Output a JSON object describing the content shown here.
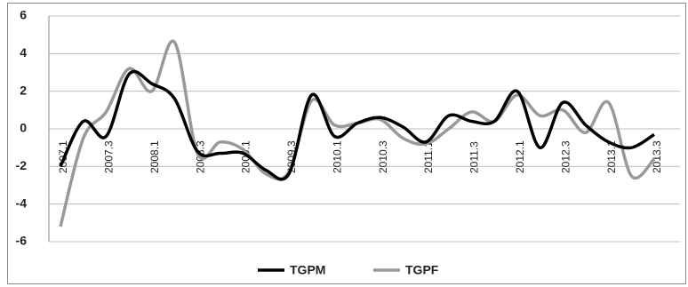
{
  "chart_data": {
    "type": "line",
    "categories": [
      "2007.1",
      null,
      "2007.3",
      null,
      "2008.1",
      null,
      "2008.3",
      null,
      "2009.1",
      null,
      "2009.3",
      null,
      "2010.1",
      null,
      "2010.3",
      null,
      "2011.1",
      null,
      "2011.3",
      null,
      "2012.1",
      null,
      "2012.3",
      null,
      "2013.1",
      null,
      "2013.3"
    ],
    "series": [
      {
        "name": "TGPM",
        "color": "#000000",
        "values": [
          -2.0,
          0.4,
          -0.4,
          2.9,
          2.4,
          1.6,
          -1.2,
          -1.3,
          -1.3,
          -2.2,
          -2.4,
          1.8,
          -0.4,
          0.3,
          0.6,
          0.1,
          -0.7,
          0.7,
          0.4,
          0.4,
          2.0,
          -1.0,
          1.4,
          0.2,
          -0.7,
          -1.0,
          -0.3
        ]
      },
      {
        "name": "TGPF",
        "color": "#999999",
        "values": [
          -5.2,
          -0.5,
          0.9,
          3.2,
          2.0,
          4.6,
          -1.3,
          -0.7,
          -1.1,
          -2.4,
          -2.3,
          1.5,
          0.2,
          0.3,
          0.5,
          -0.5,
          -0.8,
          0.0,
          0.9,
          0.4,
          1.8,
          0.7,
          1.0,
          -0.2,
          1.4,
          -2.5,
          -1.6
        ]
      }
    ],
    "ylim": [
      -6,
      6
    ],
    "yticks": [
      -6,
      -4,
      -2,
      0,
      2,
      4,
      6
    ],
    "grid": true,
    "legend": "bottom"
  }
}
